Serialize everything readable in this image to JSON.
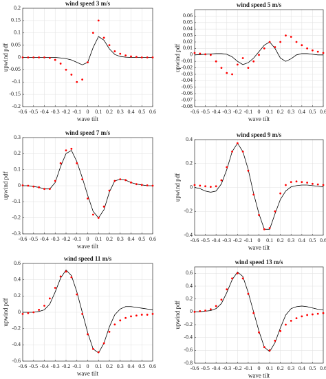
{
  "chart_data": [
    {
      "type": "line",
      "title": "wind speed 3 m/s",
      "xlabel": "wave tilt",
      "ylabel": "upwind pdf",
      "grid": true,
      "xlim": [
        -0.6,
        0.6
      ],
      "xticks": [
        -0.6,
        -0.5,
        -0.4,
        -0.3,
        -0.2,
        -0.1,
        0,
        0.1,
        0.2,
        0.3,
        0.4,
        0.5,
        0.6
      ],
      "ylim": [
        -0.2,
        0.2
      ],
      "yticks": [
        -0.2,
        -0.15,
        -0.1,
        -0.05,
        0,
        0.05,
        0.1,
        0.15,
        0.2
      ],
      "x": [
        -0.6,
        -0.55,
        -0.5,
        -0.45,
        -0.4,
        -0.35,
        -0.3,
        -0.25,
        -0.2,
        -0.15,
        -0.1,
        -0.05,
        0,
        0.05,
        0.1,
        0.15,
        0.2,
        0.25,
        0.3,
        0.35,
        0.4,
        0.45,
        0.5,
        0.55,
        0.6
      ],
      "series": [
        {
          "color": "#000000",
          "style": "line",
          "values": [
            0,
            0,
            0,
            0,
            0,
            0,
            0,
            -0.002,
            -0.005,
            -0.01,
            -0.02,
            -0.03,
            -0.02,
            0.04,
            0.085,
            0.07,
            0.035,
            0.012,
            0.004,
            0.001,
            0,
            0,
            0,
            0,
            0
          ]
        },
        {
          "color": "#ff0000",
          "style": "markers",
          "values": [
            0,
            0,
            0,
            0,
            0,
            -0.002,
            -0.01,
            -0.025,
            -0.05,
            -0.07,
            -0.1,
            -0.09,
            -0.02,
            0.1,
            0.15,
            0.08,
            0.05,
            0.025,
            0.015,
            0.008,
            0.004,
            0.002,
            0,
            0,
            0
          ]
        }
      ]
    },
    {
      "type": "line",
      "title": "wind speed 5 m/s",
      "xlabel": "wave tilt",
      "ylabel": "upwind pdf",
      "grid": true,
      "xlim": [
        -0.6,
        0.6
      ],
      "xticks": [
        -0.6,
        -0.5,
        -0.4,
        -0.3,
        -0.2,
        -0.1,
        0,
        0.1,
        0.2,
        0.3,
        0.4,
        0.5,
        0.6
      ],
      "ylim": [
        -0.08,
        0.07
      ],
      "yticks": [
        -0.08,
        -0.07,
        -0.06,
        -0.05,
        -0.04,
        -0.03,
        -0.02,
        -0.01,
        0,
        0.01,
        0.02,
        0.03,
        0.04,
        0.05,
        0.06
      ],
      "x": [
        -0.6,
        -0.55,
        -0.5,
        -0.45,
        -0.4,
        -0.35,
        -0.3,
        -0.25,
        -0.2,
        -0.15,
        -0.1,
        -0.05,
        0,
        0.05,
        0.1,
        0.15,
        0.2,
        0.25,
        0.3,
        0.35,
        0.4,
        0.45,
        0.5,
        0.55,
        0.6
      ],
      "series": [
        {
          "color": "#000000",
          "style": "line",
          "values": [
            0,
            0.0005,
            0.001,
            0.0015,
            0.002,
            0.002,
            0.001,
            -0.003,
            -0.01,
            -0.015,
            -0.012,
            -0.005,
            0.005,
            0.015,
            0.02,
            0.01,
            -0.005,
            -0.01,
            -0.006,
            0,
            0.002,
            0.002,
            0.001,
            0,
            0
          ]
        },
        {
          "color": "#ff0000",
          "style": "markers",
          "values": [
            0.003,
            0.002,
            0.001,
            0,
            -0.01,
            -0.02,
            -0.028,
            -0.03,
            -0.015,
            -0.005,
            -0.02,
            -0.01,
            0,
            0.01,
            0.02,
            0.012,
            0.02,
            0.03,
            0.028,
            0.02,
            0.015,
            0.01,
            0.007,
            0.005,
            0.003
          ]
        }
      ]
    },
    {
      "type": "line",
      "title": "wind speed 7 m/s",
      "xlabel": "wave tilt",
      "ylabel": "upwind pdf",
      "grid": true,
      "xlim": [
        -0.6,
        0.6
      ],
      "xticks": [
        -0.6,
        -0.5,
        -0.4,
        -0.3,
        -0.2,
        -0.1,
        0,
        0.1,
        0.2,
        0.3,
        0.4,
        0.5,
        0.6
      ],
      "ylim": [
        -0.3,
        0.3
      ],
      "yticks": [
        -0.3,
        -0.2,
        -0.1,
        0,
        0.1,
        0.2,
        0.3
      ],
      "x": [
        -0.6,
        -0.55,
        -0.5,
        -0.45,
        -0.4,
        -0.35,
        -0.3,
        -0.25,
        -0.2,
        -0.15,
        -0.1,
        -0.05,
        0,
        0.05,
        0.1,
        0.15,
        0.2,
        0.25,
        0.3,
        0.35,
        0.4,
        0.45,
        0.5,
        0.55,
        0.6
      ],
      "series": [
        {
          "color": "#000000",
          "style": "line",
          "values": [
            0,
            0,
            -0.005,
            -0.01,
            -0.02,
            -0.02,
            0.02,
            0.12,
            0.2,
            0.22,
            0.15,
            0.05,
            -0.06,
            -0.16,
            -0.2,
            -0.15,
            -0.04,
            0.03,
            0.04,
            0.035,
            0.02,
            0.01,
            0.005,
            0,
            0
          ]
        },
        {
          "color": "#ff0000",
          "style": "markers",
          "values": [
            0.002,
            0,
            -0.005,
            -0.01,
            -0.02,
            -0.02,
            0.03,
            0.14,
            0.22,
            0.23,
            0.14,
            0.04,
            -0.08,
            -0.18,
            -0.2,
            -0.13,
            -0.03,
            0.03,
            0.04,
            0.035,
            0.02,
            0.01,
            0.005,
            0.002,
            0
          ]
        }
      ]
    },
    {
      "type": "line",
      "title": "wind speed 9 m/s",
      "xlabel": "wave tilt",
      "ylabel": "upwind pdf",
      "grid": true,
      "xlim": [
        -0.6,
        0.6
      ],
      "xticks": [
        -0.6,
        -0.5,
        -0.4,
        -0.3,
        -0.2,
        -0.1,
        0,
        0.1,
        0.2,
        0.3,
        0.4,
        0.5,
        0.6
      ],
      "ylim": [
        -0.4,
        0.4
      ],
      "yticks": [
        -0.4,
        -0.2,
        0,
        0.2,
        0.4
      ],
      "x": [
        -0.6,
        -0.55,
        -0.5,
        -0.45,
        -0.4,
        -0.35,
        -0.3,
        -0.25,
        -0.2,
        -0.15,
        -0.1,
        -0.05,
        0,
        0.05,
        0.1,
        0.15,
        0.2,
        0.25,
        0.3,
        0.35,
        0.4,
        0.45,
        0.5,
        0.55,
        0.6
      ],
      "series": [
        {
          "color": "#000000",
          "style": "line",
          "values": [
            0,
            -0.01,
            -0.03,
            -0.04,
            -0.03,
            0.03,
            0.15,
            0.3,
            0.37,
            0.3,
            0.15,
            -0.05,
            -0.22,
            -0.35,
            -0.35,
            -0.22,
            -0.1,
            -0.03,
            0.005,
            0.015,
            0.02,
            0.02,
            0.015,
            0.01,
            0.005
          ]
        },
        {
          "color": "#ff0000",
          "style": "markers",
          "values": [
            0.02,
            0.015,
            0.01,
            0.005,
            0.01,
            0.06,
            0.17,
            0.3,
            0.37,
            0.3,
            0.14,
            -0.06,
            -0.23,
            -0.35,
            -0.34,
            -0.2,
            -0.05,
            0.02,
            0.045,
            0.05,
            0.045,
            0.04,
            0.03,
            0.025,
            0.02
          ]
        }
      ]
    },
    {
      "type": "line",
      "title": "wind speed 11 m/s",
      "xlabel": "wave tilt",
      "ylabel": "upwind pdf",
      "grid": true,
      "xlim": [
        -0.6,
        0.6
      ],
      "xticks": [
        -0.6,
        -0.5,
        -0.4,
        -0.3,
        -0.2,
        -0.1,
        0,
        0.1,
        0.2,
        0.3,
        0.4,
        0.5,
        0.6
      ],
      "ylim": [
        -0.6,
        0.6
      ],
      "yticks": [
        -0.6,
        -0.4,
        -0.2,
        0,
        0.2,
        0.4,
        0.6
      ],
      "x": [
        -0.6,
        -0.55,
        -0.5,
        -0.45,
        -0.4,
        -0.35,
        -0.3,
        -0.25,
        -0.2,
        -0.15,
        -0.1,
        -0.05,
        0,
        0.05,
        0.1,
        0.15,
        0.2,
        0.25,
        0.3,
        0.35,
        0.4,
        0.45,
        0.5,
        0.55,
        0.6
      ],
      "series": [
        {
          "color": "#000000",
          "style": "line",
          "values": [
            0,
            0,
            0,
            0.01,
            0.03,
            0.1,
            0.25,
            0.42,
            0.52,
            0.45,
            0.25,
            0,
            -0.25,
            -0.45,
            -0.5,
            -0.38,
            -0.18,
            -0.03,
            0.04,
            0.07,
            0.07,
            0.06,
            0.05,
            0.04,
            0.03
          ]
        },
        {
          "color": "#ff0000",
          "style": "markers",
          "values": [
            -0.02,
            -0.01,
            0,
            0.03,
            0.08,
            0.17,
            0.3,
            0.44,
            0.5,
            0.43,
            0.22,
            -0.02,
            -0.27,
            -0.45,
            -0.49,
            -0.38,
            -0.24,
            -0.15,
            -0.1,
            -0.07,
            -0.05,
            -0.04,
            -0.03,
            -0.03,
            -0.02
          ]
        }
      ]
    },
    {
      "type": "line",
      "title": "wind speed 13 m/s",
      "xlabel": "wave tilt",
      "ylabel": "upwind pdf",
      "grid": true,
      "xlim": [
        -0.6,
        0.6
      ],
      "xticks": [
        -0.6,
        -0.5,
        -0.4,
        -0.3,
        -0.2,
        -0.1,
        0,
        0.1,
        0.2,
        0.3,
        0.4,
        0.5,
        0.6
      ],
      "ylim": [
        -0.8,
        0.7
      ],
      "yticks": [
        -0.8,
        -0.6,
        -0.4,
        -0.2,
        0,
        0.2,
        0.4,
        0.6
      ],
      "x": [
        -0.6,
        -0.55,
        -0.5,
        -0.45,
        -0.4,
        -0.35,
        -0.3,
        -0.25,
        -0.2,
        -0.15,
        -0.1,
        -0.05,
        0,
        0.05,
        0.1,
        0.15,
        0.2,
        0.25,
        0.3,
        0.35,
        0.4,
        0.45,
        0.5,
        0.55,
        0.6
      ],
      "series": [
        {
          "color": "#000000",
          "style": "line",
          "values": [
            0,
            0,
            0.01,
            0.02,
            0.05,
            0.13,
            0.3,
            0.5,
            0.62,
            0.55,
            0.3,
            0,
            -0.3,
            -0.55,
            -0.62,
            -0.48,
            -0.25,
            -0.05,
            0.05,
            0.08,
            0.09,
            0.08,
            0.06,
            0.04,
            0.03
          ]
        },
        {
          "color": "#ff0000",
          "style": "markers",
          "values": [
            0,
            0.01,
            0.02,
            0.04,
            0.09,
            0.19,
            0.35,
            0.52,
            0.6,
            0.52,
            0.28,
            -0.02,
            -0.32,
            -0.55,
            -0.6,
            -0.45,
            -0.3,
            -0.2,
            -0.14,
            -0.1,
            -0.07,
            -0.05,
            -0.04,
            -0.03,
            -0.02
          ]
        }
      ]
    }
  ]
}
